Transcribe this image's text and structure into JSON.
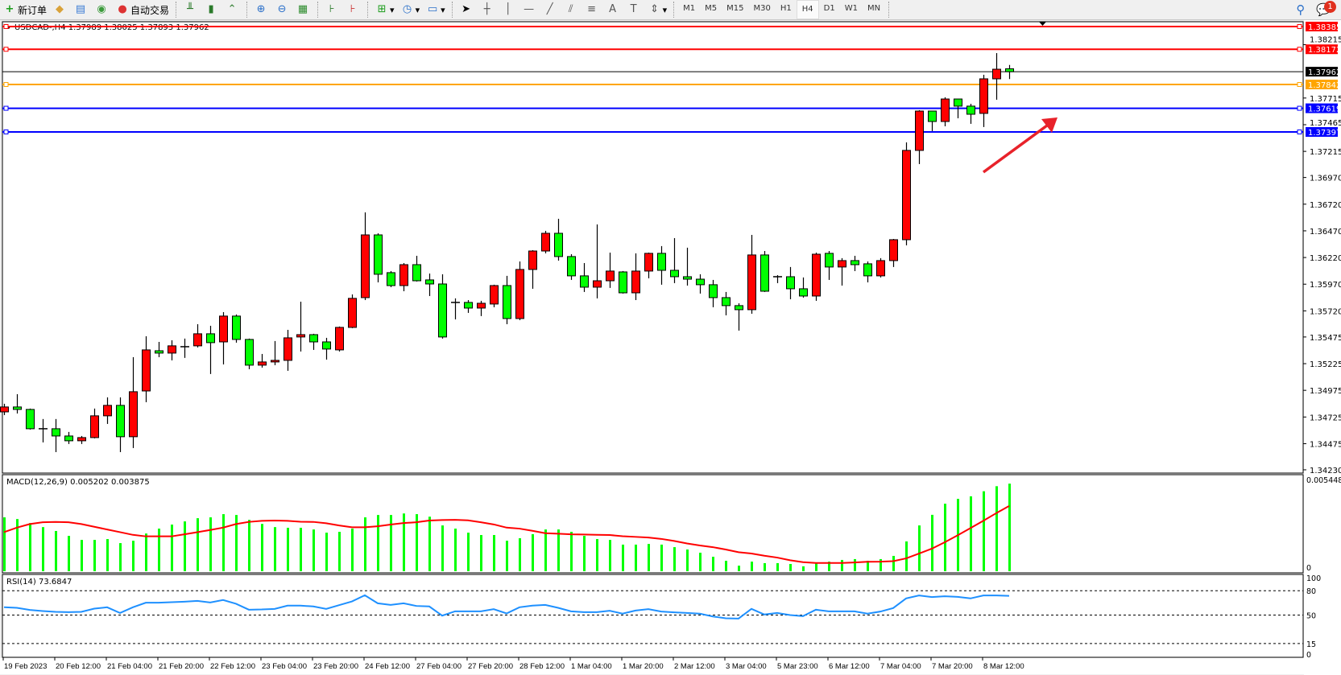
{
  "toolbar": {
    "new_order": "新订单",
    "auto_trading": "自动交易",
    "timeframes": [
      "M1",
      "M5",
      "M15",
      "M30",
      "H1",
      "H4",
      "D1",
      "W1",
      "MN"
    ],
    "active_timeframe": "H4",
    "notification_count": "1"
  },
  "chart": {
    "header": "USDCAD-,H4  1.37989 1.38025 1.37893 1.37962",
    "colors": {
      "bull": "#ff0000",
      "bear": "#00ff00",
      "outline": "#000000"
    },
    "price_ticks": [
      "1.38215",
      "1.37715",
      "1.37465",
      "1.37215",
      "1.36970",
      "1.36720",
      "1.36470",
      "1.36220",
      "1.35970",
      "1.35720",
      "1.35475",
      "1.35225",
      "1.34975",
      "1.34725",
      "1.34475",
      "1.34230"
    ],
    "levels": [
      {
        "price": "1.38385",
        "color": "#ff0000"
      },
      {
        "price": "1.38172",
        "color": "#ff0000"
      },
      {
        "price": "1.37962",
        "color": "#000000"
      },
      {
        "price": "1.37842",
        "color": "#ffa500"
      },
      {
        "price": "1.37619",
        "color": "#0000ff"
      },
      {
        "price": "1.37397",
        "color": "#0000ff"
      }
    ],
    "time_labels": [
      "19 Feb 2023",
      "20 Feb 12:00",
      "21 Feb 04:00",
      "21 Feb 20:00",
      "22 Feb 12:00",
      "23 Feb 04:00",
      "23 Feb 20:00",
      "24 Feb 12:00",
      "27 Feb 04:00",
      "27 Feb 20:00",
      "28 Feb 12:00",
      "1 Mar 04:00",
      "1 Mar 20:00",
      "2 Mar 12:00",
      "3 Mar 04:00",
      "5 Mar 23:00",
      "6 Mar 12:00",
      "7 Mar 04:00",
      "7 Mar 20:00",
      "8 Mar 12:00"
    ],
    "annotation": "red-up-arrow",
    "candles": [
      [
        1.34773,
        1.34849,
        1.34743,
        1.34819
      ],
      [
        1.34819,
        1.34939,
        1.34758,
        1.34796
      ],
      [
        1.34796,
        1.34804,
        1.34607,
        1.34615
      ],
      [
        1.34615,
        1.34706,
        1.34487,
        1.34615
      ],
      [
        1.34615,
        1.34706,
        1.34396,
        1.34547
      ],
      [
        1.34547,
        1.34585,
        1.34472,
        1.34502
      ],
      [
        1.34502,
        1.34547,
        1.34472,
        1.34532
      ],
      [
        1.34532,
        1.34804,
        1.34525,
        1.34736
      ],
      [
        1.34736,
        1.34909,
        1.3466,
        1.34834
      ],
      [
        1.34834,
        1.34909,
        1.34396,
        1.3454
      ],
      [
        1.3454,
        1.35286,
        1.34434,
        1.34962
      ],
      [
        1.34969,
        1.35482,
        1.34864,
        1.35354
      ],
      [
        1.35346,
        1.35429,
        1.35286,
        1.35324
      ],
      [
        1.35324,
        1.35444,
        1.35256,
        1.35392
      ],
      [
        1.35384,
        1.3546,
        1.35279,
        1.35384
      ],
      [
        1.35392,
        1.35595,
        1.35377,
        1.35505
      ],
      [
        1.35505,
        1.3558,
        1.35128,
        1.35422
      ],
      [
        1.35429,
        1.35708,
        1.35218,
        1.35671
      ],
      [
        1.35671,
        1.35686,
        1.35422,
        1.35452
      ],
      [
        1.35452,
        1.3546,
        1.35173,
        1.35211
      ],
      [
        1.35211,
        1.35316,
        1.35188,
        1.35241
      ],
      [
        1.35241,
        1.35437,
        1.35211,
        1.35256
      ],
      [
        1.35256,
        1.35542,
        1.35158,
        1.35467
      ],
      [
        1.35475,
        1.35806,
        1.35339,
        1.35497
      ],
      [
        1.35497,
        1.35505,
        1.35354,
        1.35429
      ],
      [
        1.35429,
        1.35467,
        1.35263,
        1.35362
      ],
      [
        1.35354,
        1.35573,
        1.35339,
        1.35565
      ],
      [
        1.35565,
        1.35874,
        1.35558,
        1.35837
      ],
      [
        1.35844,
        1.36643,
        1.35821,
        1.36432
      ],
      [
        1.36432,
        1.36447,
        1.35987,
        1.36063
      ],
      [
        1.36078,
        1.36093,
        1.35942,
        1.35957
      ],
      [
        1.35957,
        1.36168,
        1.35904,
        1.36153
      ],
      [
        1.36153,
        1.36236,
        1.35995,
        1.36002
      ],
      [
        1.3601,
        1.3607,
        1.35859,
        1.35972
      ],
      [
        1.35972,
        1.36063,
        1.3546,
        1.35475
      ],
      [
        1.35799,
        1.35837,
        1.3564,
        1.35799
      ],
      [
        1.35799,
        1.35821,
        1.35701,
        1.35746
      ],
      [
        1.35746,
        1.35814,
        1.35671,
        1.35791
      ],
      [
        1.35784,
        1.35965,
        1.35754,
        1.35957
      ],
      [
        1.35957,
        1.36048,
        1.35595,
        1.35648
      ],
      [
        1.35648,
        1.36183,
        1.35633,
        1.36108
      ],
      [
        1.36108,
        1.36289,
        1.35927,
        1.36281
      ],
      [
        1.36281,
        1.3647,
        1.36259,
        1.36447
      ],
      [
        1.36447,
        1.36583,
        1.36191,
        1.36229
      ],
      [
        1.36229,
        1.36251,
        1.3601,
        1.36048
      ],
      [
        1.36048,
        1.36168,
        1.35897,
        1.35942
      ],
      [
        1.35942,
        1.3653,
        1.35837,
        1.36002
      ],
      [
        1.36002,
        1.36266,
        1.35935,
        1.36093
      ],
      [
        1.36085,
        1.36093,
        1.35882,
        1.35889
      ],
      [
        1.35889,
        1.36259,
        1.35821,
        1.36093
      ],
      [
        1.36093,
        1.36266,
        1.36025,
        1.36259
      ],
      [
        1.36259,
        1.36327,
        1.35965,
        1.361
      ],
      [
        1.361,
        1.36402,
        1.3598,
        1.3604
      ],
      [
        1.3604,
        1.36312,
        1.35957,
        1.36017
      ],
      [
        1.36017,
        1.36063,
        1.35882,
        1.35965
      ],
      [
        1.35965,
        1.3601,
        1.35754,
        1.35844
      ],
      [
        1.35844,
        1.35897,
        1.35678,
        1.35769
      ],
      [
        1.35769,
        1.35791,
        1.35535,
        1.35731
      ],
      [
        1.35731,
        1.36432,
        1.35693,
        1.36244
      ],
      [
        1.36244,
        1.36281,
        1.35897,
        1.35904
      ],
      [
        1.3604,
        1.36055,
        1.3598,
        1.3604
      ],
      [
        1.3604,
        1.36131,
        1.35829,
        1.35927
      ],
      [
        1.35927,
        1.36033,
        1.35844,
        1.35859
      ],
      [
        1.35859,
        1.36266,
        1.35814,
        1.36251
      ],
      [
        1.36259,
        1.36281,
        1.3601,
        1.36131
      ],
      [
        1.36131,
        1.36214,
        1.35957,
        1.36191
      ],
      [
        1.36191,
        1.36236,
        1.36093,
        1.36153
      ],
      [
        1.36161,
        1.36183,
        1.35987,
        1.36048
      ],
      [
        1.36048,
        1.36214,
        1.36033,
        1.36191
      ],
      [
        1.36191,
        1.36394,
        1.36131,
        1.36387
      ],
      [
        1.36387,
        1.37299,
        1.36334,
        1.37224
      ],
      [
        1.37224,
        1.37601,
        1.37096,
        1.37593
      ],
      [
        1.37593,
        1.37593,
        1.37405,
        1.37495
      ],
      [
        1.37495,
        1.37722,
        1.3745,
        1.37706
      ],
      [
        1.37706,
        1.37706,
        1.37525,
        1.37639
      ],
      [
        1.37639,
        1.37661,
        1.37473,
        1.37563
      ],
      [
        1.37571,
        1.37933,
        1.37443,
        1.37895
      ],
      [
        1.37895,
        1.38136,
        1.37699,
        1.37985
      ],
      [
        1.37989,
        1.38025,
        1.37893,
        1.37962
      ]
    ]
  },
  "macd": {
    "label": "MACD(12,26,9) 0.005202 0.003875",
    "axis_max": "0.005448",
    "axis_zero": "0",
    "hist_color": "#00ff00",
    "signal_color": "#ff0000",
    "histogram": [
      0.0032,
      0.0031,
      0.00286,
      0.00262,
      0.00239,
      0.0021,
      0.00186,
      0.00186,
      0.00191,
      0.00167,
      0.00181,
      0.00224,
      0.00253,
      0.00277,
      0.00296,
      0.00315,
      0.0032,
      0.00339,
      0.00334,
      0.00305,
      0.00281,
      0.00262,
      0.00258,
      0.00258,
      0.00248,
      0.00229,
      0.00234,
      0.00253,
      0.0032,
      0.00334,
      0.00334,
      0.00343,
      0.00339,
      0.00324,
      0.00272,
      0.00253,
      0.00229,
      0.00215,
      0.00215,
      0.00181,
      0.00196,
      0.0022,
      0.00248,
      0.00248,
      0.00234,
      0.0021,
      0.00191,
      0.00186,
      0.00158,
      0.00158,
      0.00162,
      0.00158,
      0.00143,
      0.00129,
      0.0011,
      0.00086,
      0.00062,
      0.00033,
      0.00057,
      0.00048,
      0.00048,
      0.00043,
      0.00029,
      0.00048,
      0.00057,
      0.00067,
      0.00072,
      0.00062,
      0.00072,
      0.00091,
      0.00177,
      0.00272,
      0.00335,
      0.00401,
      0.0043,
      0.00445,
      0.00475,
      0.00505,
      0.005202
    ],
    "signal": [
      0.00232,
      0.00259,
      0.0028,
      0.00291,
      0.00293,
      0.00291,
      0.0028,
      0.00264,
      0.00248,
      0.00232,
      0.00216,
      0.00207,
      0.00207,
      0.00207,
      0.00219,
      0.00232,
      0.00245,
      0.00259,
      0.0028,
      0.00293,
      0.00299,
      0.00301,
      0.00299,
      0.00294,
      0.00293,
      0.00285,
      0.00272,
      0.00261,
      0.00261,
      0.00267,
      0.00277,
      0.00286,
      0.00291,
      0.00301,
      0.00304,
      0.00305,
      0.00302,
      0.00291,
      0.00278,
      0.00259,
      0.00253,
      0.0024,
      0.00226,
      0.00223,
      0.00219,
      0.00218,
      0.00216,
      0.00215,
      0.00208,
      0.00204,
      0.002,
      0.00192,
      0.0018,
      0.00165,
      0.00153,
      0.00143,
      0.00129,
      0.00113,
      0.00105,
      0.00092,
      0.00081,
      0.00065,
      0.00054,
      0.00049,
      0.00049,
      0.00049,
      0.00052,
      0.00056,
      0.00057,
      0.0006,
      0.00076,
      0.00105,
      0.00134,
      0.00172,
      0.00213,
      0.00256,
      0.003,
      0.00345,
      0.003875
    ]
  },
  "rsi": {
    "label": "RSI(14) 73.6847",
    "color": "#1e90ff",
    "levels": [
      "100",
      "80",
      "50",
      "15",
      "0"
    ],
    "values": [
      59.6,
      58.9,
      56.3,
      55.0,
      54.0,
      53.6,
      54.0,
      57.9,
      59.6,
      52.6,
      59.6,
      65.2,
      65.2,
      65.8,
      66.5,
      67.5,
      65.5,
      68.5,
      63.9,
      56.6,
      56.9,
      57.6,
      61.6,
      61.6,
      60.6,
      57.6,
      62.2,
      66.8,
      74.4,
      64.5,
      62.5,
      64.5,
      61.2,
      60.6,
      49.3,
      54.6,
      54.6,
      54.6,
      57.3,
      52.0,
      59.6,
      61.6,
      62.5,
      58.9,
      54.6,
      53.6,
      53.6,
      55.3,
      51.7,
      55.6,
      57.3,
      54.3,
      53.3,
      52.6,
      51.7,
      48.3,
      46.0,
      45.7,
      57.6,
      50.7,
      52.6,
      50.0,
      48.7,
      56.6,
      54.6,
      54.6,
      54.6,
      51.7,
      54.3,
      58.6,
      70.5,
      74.1,
      72.1,
      73.1,
      72.4,
      70.5,
      74.1,
      74.1,
      73.6847
    ]
  }
}
